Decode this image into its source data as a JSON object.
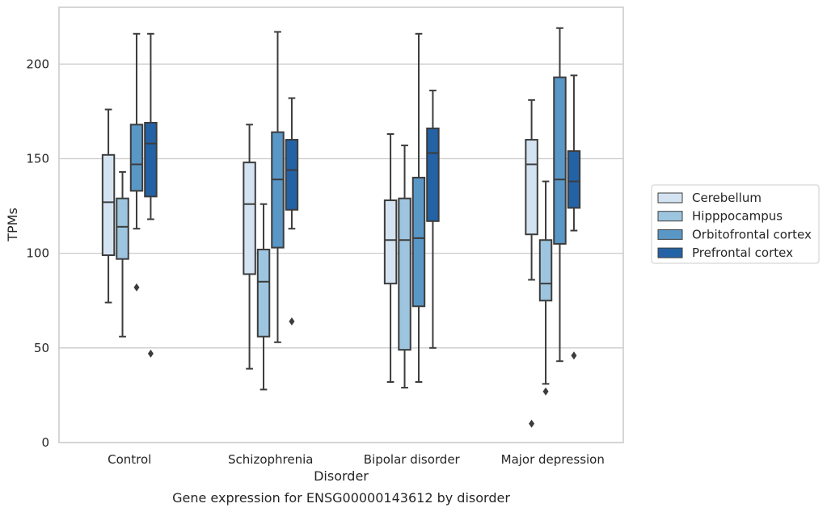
{
  "chart_data": {
    "type": "box",
    "xlabel": "Disorder",
    "ylabel": "TPMs",
    "caption": "Gene expression for ENSG00000143612 by disorder",
    "ylim": [
      0,
      230
    ],
    "yticks": [
      0,
      50,
      100,
      150,
      200
    ],
    "grid": "horizontal",
    "legend_position": "right",
    "categories": [
      "Control",
      "Schizophrenia",
      "Bipolar disorder",
      "Major depression"
    ],
    "colors": [
      "#d4e3f2",
      "#9dc5df",
      "#5997c6",
      "#2462a6"
    ],
    "edge_color": "#3c3c3c",
    "series": [
      {
        "name": "Cerebellum",
        "boxes": [
          {
            "whislo": 74,
            "q1": 99,
            "med": 127,
            "q3": 152,
            "whishi": 176,
            "fliers": []
          },
          {
            "whislo": 39,
            "q1": 89,
            "med": 126,
            "q3": 148,
            "whishi": 168,
            "fliers": []
          },
          {
            "whislo": 32,
            "q1": 84,
            "med": 107,
            "q3": 128,
            "whishi": 163,
            "fliers": []
          },
          {
            "whislo": 86,
            "q1": 110,
            "med": 147,
            "q3": 160,
            "whishi": 181,
            "fliers": [
              10
            ]
          }
        ]
      },
      {
        "name": "Hipppocampus",
        "boxes": [
          {
            "whislo": 56,
            "q1": 97,
            "med": 114,
            "q3": 129,
            "whishi": 143,
            "fliers": []
          },
          {
            "whislo": 28,
            "q1": 56,
            "med": 85,
            "q3": 102,
            "whishi": 126,
            "fliers": []
          },
          {
            "whislo": 29,
            "q1": 49,
            "med": 107,
            "q3": 129,
            "whishi": 157,
            "fliers": []
          },
          {
            "whislo": 31,
            "q1": 75,
            "med": 84,
            "q3": 107,
            "whishi": 138,
            "fliers": [
              27
            ]
          }
        ]
      },
      {
        "name": "Orbitofrontal cortex",
        "boxes": [
          {
            "whislo": 113,
            "q1": 133,
            "med": 147,
            "q3": 168,
            "whishi": 216,
            "fliers": [
              82
            ]
          },
          {
            "whislo": 53,
            "q1": 103,
            "med": 139,
            "q3": 164,
            "whishi": 217,
            "fliers": []
          },
          {
            "whislo": 32,
            "q1": 72,
            "med": 108,
            "q3": 140,
            "whishi": 216,
            "fliers": []
          },
          {
            "whislo": 43,
            "q1": 105,
            "med": 139,
            "q3": 193,
            "whishi": 219,
            "fliers": []
          }
        ]
      },
      {
        "name": "Prefrontal cortex",
        "boxes": [
          {
            "whislo": 118,
            "q1": 130,
            "med": 158,
            "q3": 169,
            "whishi": 216,
            "fliers": [
              47
            ]
          },
          {
            "whislo": 113,
            "q1": 123,
            "med": 144,
            "q3": 160,
            "whishi": 182,
            "fliers": [
              64
            ]
          },
          {
            "whislo": 50,
            "q1": 117,
            "med": 153,
            "q3": 166,
            "whishi": 186,
            "fliers": []
          },
          {
            "whislo": 112,
            "q1": 124,
            "med": 138,
            "q3": 154,
            "whishi": 194,
            "fliers": [
              46
            ]
          }
        ]
      }
    ]
  }
}
